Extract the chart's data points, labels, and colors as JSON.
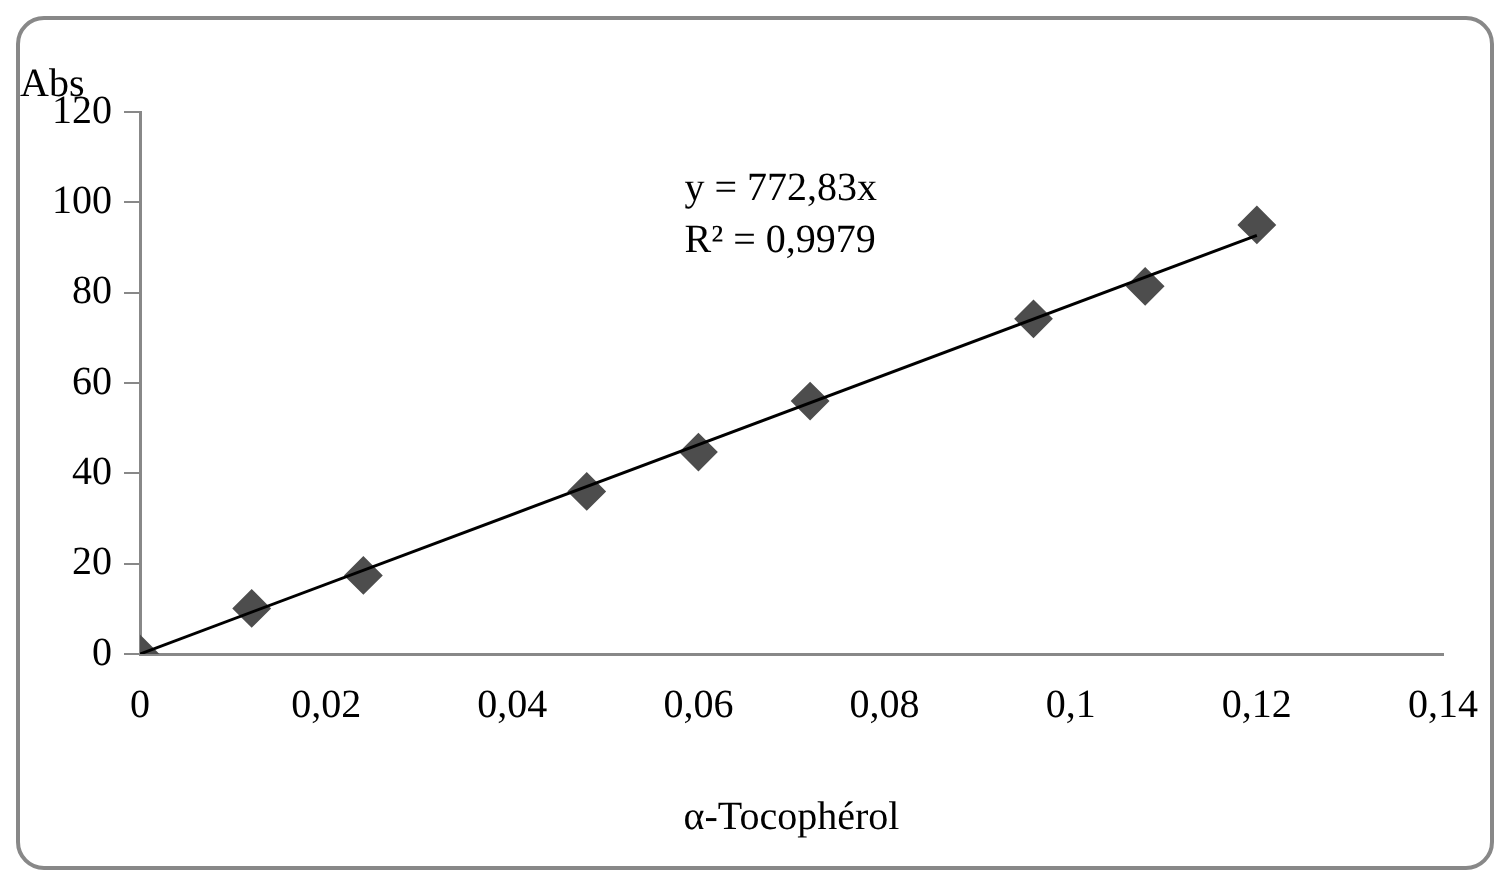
{
  "chart_data": {
    "type": "scatter",
    "xlabel": "α-Tocophérol",
    "ylabel": "Abs",
    "annotations": [
      "y = 772,83x",
      "R² = 0,9979"
    ],
    "xlim": [
      0,
      0.14
    ],
    "xticks": [
      {
        "value": 0,
        "label": "0"
      },
      {
        "value": 0.02,
        "label": "0,02"
      },
      {
        "value": 0.04,
        "label": "0,04"
      },
      {
        "value": 0.06,
        "label": "0,06"
      },
      {
        "value": 0.08,
        "label": "0,08"
      },
      {
        "value": 0.1,
        "label": "0,1"
      },
      {
        "value": 0.12,
        "label": "0,12"
      },
      {
        "value": 0.14,
        "label": "0,14"
      }
    ],
    "ylim": [
      0,
      120
    ],
    "yticks": [
      0,
      20,
      40,
      60,
      80,
      100,
      120
    ],
    "grid": false,
    "legend": false,
    "series": [
      {
        "type": "scatter",
        "marker": "diamond",
        "color": "#4d4d4d",
        "x": [
          0,
          0.012,
          0.024,
          0.048,
          0.06,
          0.072,
          0.096,
          0.108,
          0.12
        ],
        "values": [
          0,
          10.1,
          17.4,
          36,
          44.7,
          56,
          74.2,
          81.4,
          95
        ]
      },
      {
        "type": "line",
        "marker": "none",
        "color": "#000000",
        "x": [
          0,
          0.12
        ],
        "values": [
          0,
          92.7
        ]
      }
    ]
  }
}
